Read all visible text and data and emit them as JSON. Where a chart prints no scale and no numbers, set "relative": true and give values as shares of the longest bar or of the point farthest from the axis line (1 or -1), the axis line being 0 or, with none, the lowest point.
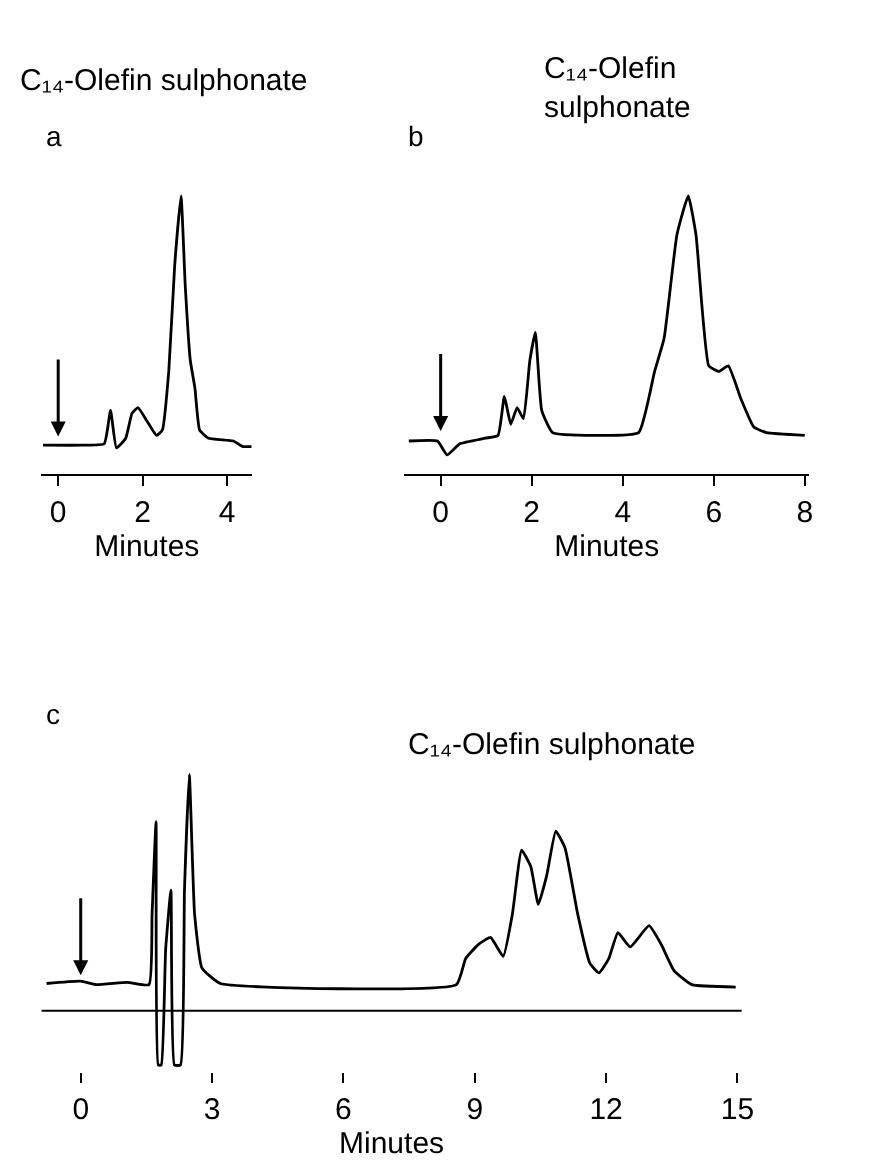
{
  "chart_data": [
    {
      "type": "line",
      "title": "C₁₄-Olefin sulphonate",
      "annotations": [
        "a"
      ],
      "xlabel": "Minutes",
      "relative": true,
      "xlim": [
        -0.4,
        4.6
      ],
      "xticks": [
        0,
        2,
        4
      ],
      "x": [
        -0.36,
        0.58,
        1.09,
        1.24,
        1.38,
        1.6,
        1.75,
        1.89,
        2.11,
        2.33,
        2.47,
        2.62,
        2.76,
        2.91,
        3.01,
        3.13,
        3.24,
        3.35,
        3.56,
        4.15,
        4.37,
        4.58
      ],
      "series": [
        {
          "color": "#000000",
          "values": [
            0.105,
            0.105,
            0.11,
            0.23,
            0.095,
            0.13,
            0.22,
            0.24,
            0.19,
            0.14,
            0.16,
            0.37,
            0.75,
            1.0,
            0.68,
            0.41,
            0.31,
            0.16,
            0.13,
            0.12,
            0.1,
            0.1
          ]
        }
      ]
    },
    {
      "type": "line",
      "title": "C₁₄-Olefin\nsulphonate",
      "annotations": [
        "b"
      ],
      "xlabel": "Minutes",
      "relative": true,
      "xlim": [
        -0.8,
        8.1
      ],
      "xticks": [
        0,
        2,
        4,
        6,
        8
      ],
      "x": [
        -0.7,
        -0.07,
        0.14,
        0.42,
        0.98,
        1.26,
        1.4,
        1.54,
        1.68,
        1.82,
        1.96,
        2.08,
        2.22,
        2.46,
        3.37,
        4.35,
        4.7,
        4.91,
        5.19,
        5.44,
        5.61,
        5.89,
        6.11,
        6.32,
        6.6,
        6.88,
        7.16,
        8.0
      ],
      "series": [
        {
          "color": "#000000",
          "values": [
            0.12,
            0.12,
            0.07,
            0.11,
            0.13,
            0.14,
            0.28,
            0.18,
            0.24,
            0.2,
            0.41,
            0.51,
            0.23,
            0.15,
            0.14,
            0.15,
            0.37,
            0.49,
            0.86,
            1.0,
            0.86,
            0.39,
            0.37,
            0.39,
            0.27,
            0.17,
            0.15,
            0.14
          ]
        }
      ]
    },
    {
      "type": "line",
      "title": "C₁₄-Olefin sulphonate",
      "annotations": [
        "c"
      ],
      "xlabel": "Minutes",
      "relative": true,
      "xlim": [
        -0.9,
        15.1
      ],
      "xticks": [
        0,
        3,
        6,
        9,
        12,
        15
      ],
      "x": [
        -0.78,
        0,
        0.35,
        1.06,
        1.56,
        1.63,
        1.72,
        1.77,
        1.84,
        1.94,
        2.06,
        2.14,
        2.28,
        2.37,
        2.48,
        2.6,
        2.77,
        3.19,
        8.58,
        8.79,
        9.08,
        9.36,
        9.65,
        9.86,
        10.07,
        10.28,
        10.45,
        10.64,
        10.85,
        11.06,
        11.35,
        11.63,
        11.84,
        12.06,
        12.27,
        12.55,
        12.98,
        13.26,
        13.55,
        13.96,
        14.96
      ],
      "series": [
        {
          "color": "#000000",
          "values": [
            0.115,
            0.125,
            0.11,
            0.12,
            0.11,
            0.41,
            0.8,
            -0.23,
            -0.23,
            0.26,
            0.51,
            -0.23,
            -0.23,
            0.51,
            1.0,
            0.41,
            0.18,
            0.115,
            0.11,
            0.22,
            0.28,
            0.31,
            0.23,
            0.41,
            0.68,
            0.61,
            0.45,
            0.57,
            0.76,
            0.69,
            0.41,
            0.2,
            0.16,
            0.22,
            0.33,
            0.27,
            0.36,
            0.28,
            0.17,
            0.11,
            0.1
          ]
        }
      ]
    }
  ]
}
